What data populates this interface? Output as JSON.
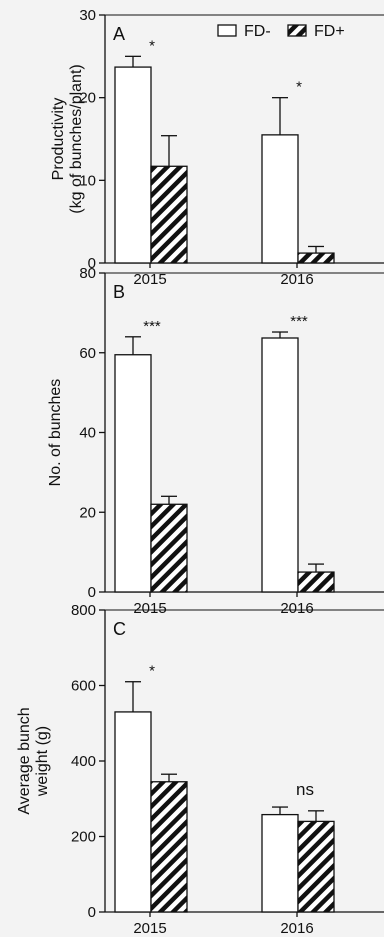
{
  "legend": [
    {
      "label": "FD-",
      "pattern": "open"
    },
    {
      "label": "FD+",
      "pattern": "hatched"
    }
  ],
  "chart_data": [
    {
      "type": "bar",
      "panel_label": "A",
      "ylabel": "Productivity\n(kg of bunches/plant)",
      "ylim": [
        0,
        30
      ],
      "yticks": [
        "0",
        "10",
        "20",
        "30"
      ],
      "categories": [
        "2015",
        "2016"
      ],
      "series": [
        {
          "name": "FD-",
          "values": [
            23.7,
            15.5
          ],
          "errors": [
            1.3,
            4.5
          ]
        },
        {
          "name": "FD+",
          "values": [
            11.7,
            1.2
          ],
          "errors": [
            3.7,
            0.8
          ]
        }
      ],
      "annotations": [
        "*",
        "*"
      ]
    },
    {
      "type": "bar",
      "panel_label": "B",
      "ylabel": "No. of bunches",
      "ylim": [
        0,
        80
      ],
      "yticks": [
        "0",
        "20",
        "40",
        "60",
        "80"
      ],
      "categories": [
        "2015",
        "2016"
      ],
      "series": [
        {
          "name": "FD-",
          "values": [
            59.5,
            63.7
          ],
          "errors": [
            4.5,
            1.5
          ]
        },
        {
          "name": "FD+",
          "values": [
            22,
            5
          ],
          "errors": [
            2,
            2
          ]
        }
      ],
      "annotations": [
        "***",
        "***"
      ]
    },
    {
      "type": "bar",
      "panel_label": "C",
      "ylabel": "Average bunch\nweight (g)",
      "ylim": [
        0,
        800
      ],
      "yticks": [
        "0",
        "200",
        "400",
        "600",
        "800"
      ],
      "categories": [
        "2015",
        "2016"
      ],
      "series": [
        {
          "name": "FD-",
          "values": [
            530,
            258
          ],
          "errors": [
            80,
            20
          ]
        },
        {
          "name": "FD+",
          "values": [
            345,
            240
          ],
          "errors": [
            20,
            28
          ]
        }
      ],
      "annotations": [
        "*",
        "ns"
      ]
    }
  ]
}
